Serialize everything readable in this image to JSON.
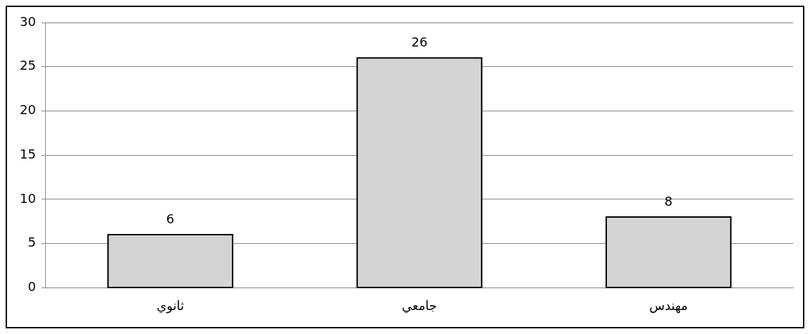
{
  "chart_data": {
    "type": "bar",
    "categories": [
      "ثانوي",
      "جامعي",
      "مهندس"
    ],
    "values": [
      6,
      26,
      8
    ],
    "color": "#d4d4d4",
    "ylim": [
      0,
      30
    ],
    "yticks": [
      0,
      5,
      10,
      15,
      20,
      25,
      30
    ],
    "grid": "y",
    "data_labels": true,
    "legend": false
  }
}
